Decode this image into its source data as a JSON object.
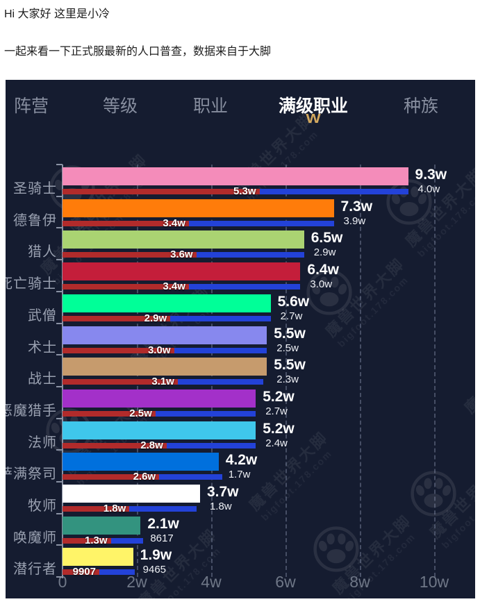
{
  "intro": {
    "line1": "Hi 大家好 这里是小冷",
    "line2": "一起来看一下正式服最新的人口普查，数据来自于大脚"
  },
  "tabs": [
    {
      "label": "阵营",
      "active": false
    },
    {
      "label": "等级",
      "active": false
    },
    {
      "label": "职业",
      "active": false
    },
    {
      "label": "满级职业",
      "active": true
    },
    {
      "label": "种族",
      "active": false
    }
  ],
  "active_tab_marker": {
    "glyph": "W",
    "color": "#D2A85F"
  },
  "watermark": {
    "line1": "魔兽世界大脚",
    "line2": "bigfoot.178.com"
  },
  "panel_colors": {
    "background": "#151C30",
    "seg1_red": "#B12B2B",
    "seg2_blue": "#2342D8",
    "gridline": "#4A5571",
    "axis": "#8A92A4",
    "label_gray": "#99A0B0"
  },
  "chart_data": {
    "type": "bar",
    "orientation": "horizontal",
    "x_tick_labels": [
      "0",
      "2w",
      "4w",
      "6w",
      "8w",
      "10w"
    ],
    "x_tick_values_w": [
      0,
      2,
      4,
      6,
      8,
      10
    ],
    "xlim_w": [
      0,
      11.1
    ],
    "grid": "dashed-vertical",
    "legend": "none",
    "rows": [
      {
        "label": "圣骑士",
        "color": "#F48CBA",
        "total_w": 9.3,
        "total_label": "9.3w",
        "seg1_w": 5.3,
        "seg1_label": "5.3w",
        "seg2_w": 4.0,
        "seg2_label": "4.0w"
      },
      {
        "label": "德鲁伊",
        "color": "#FF7C0A",
        "total_w": 7.3,
        "total_label": "7.3w",
        "seg1_w": 3.4,
        "seg1_label": "3.4w",
        "seg2_w": 3.9,
        "seg2_label": "3.9w"
      },
      {
        "label": "猎人",
        "color": "#AAD372",
        "total_w": 6.5,
        "total_label": "6.5w",
        "seg1_w": 3.6,
        "seg1_label": "3.6w",
        "seg2_w": 2.9,
        "seg2_label": "2.9w"
      },
      {
        "label": "死亡骑士",
        "color": "#C41E3A",
        "total_w": 6.4,
        "total_label": "6.4w",
        "seg1_w": 3.4,
        "seg1_label": "3.4w",
        "seg2_w": 3.0,
        "seg2_label": "3.0w"
      },
      {
        "label": "武僧",
        "color": "#00FF98",
        "total_w": 5.6,
        "total_label": "5.6w",
        "seg1_w": 2.9,
        "seg1_label": "2.9w",
        "seg2_w": 2.7,
        "seg2_label": "2.7w"
      },
      {
        "label": "术士",
        "color": "#8788EE",
        "total_w": 5.5,
        "total_label": "5.5w",
        "seg1_w": 3.0,
        "seg1_label": "3.0w",
        "seg2_w": 2.5,
        "seg2_label": "2.5w"
      },
      {
        "label": "战士",
        "color": "#C69B6D",
        "total_w": 5.5,
        "total_label": "5.5w",
        "seg1_w": 3.1,
        "seg1_label": "3.1w",
        "seg2_w": 2.3,
        "seg2_label": "2.3w"
      },
      {
        "label": "恶魔猎手",
        "color": "#A330C9",
        "total_w": 5.2,
        "total_label": "5.2w",
        "seg1_w": 2.5,
        "seg1_label": "2.5w",
        "seg2_w": 2.7,
        "seg2_label": "2.7w"
      },
      {
        "label": "法师",
        "color": "#3FC7EB",
        "total_w": 5.2,
        "total_label": "5.2w",
        "seg1_w": 2.8,
        "seg1_label": "2.8w",
        "seg2_w": 2.4,
        "seg2_label": "2.4w"
      },
      {
        "label": "萨满祭司",
        "color": "#0070DD",
        "total_w": 4.2,
        "total_label": "4.2w",
        "seg1_w": 2.6,
        "seg1_label": "2.6w",
        "seg2_w": 1.7,
        "seg2_label": "1.7w"
      },
      {
        "label": "牧师",
        "color": "#FFFFFF",
        "total_w": 3.7,
        "total_label": "3.7w",
        "seg1_w": 1.8,
        "seg1_label": "1.8w",
        "seg2_w": 1.8,
        "seg2_label": "1.8w"
      },
      {
        "label": "唤魔师",
        "color": "#33937F",
        "total_w": 2.1,
        "total_label": "2.1w",
        "seg1_w": 1.3,
        "seg1_label": "1.3w",
        "seg2_w": 0.8617,
        "seg2_label": "8617"
      },
      {
        "label": "潜行者",
        "color": "#FFF468",
        "total_w": 1.9,
        "total_label": "1.9w",
        "seg1_w": 0.9907,
        "seg1_label": "9907",
        "seg2_w": 0.9465,
        "seg2_label": "9465"
      }
    ]
  }
}
